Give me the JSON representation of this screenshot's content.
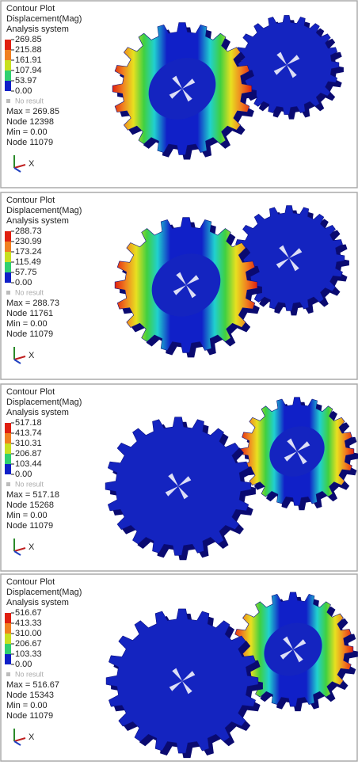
{
  "panels": [
    {
      "title": "Contour Plot",
      "subtitle": "Displacement(Mag)",
      "system": "Analysis system",
      "legend": [
        "269.85",
        "215.88",
        "161.91",
        "107.94",
        "53.97",
        "0.00"
      ],
      "no_result": "No result",
      "max": "Max = 269.85",
      "max_node": "Node 12398",
      "min": "Min = 0.00",
      "min_node": "Node 11079",
      "axis_x": "X"
    },
    {
      "title": "Contour Plot",
      "subtitle": "Displacement(Mag)",
      "system": "Analysis system",
      "legend": [
        "288.73",
        "230.99",
        "173.24",
        "115.49",
        "57.75",
        "0.00"
      ],
      "no_result": "No result",
      "max": "Max = 288.73",
      "max_node": "Node 11761",
      "min": "Min = 0.00",
      "min_node": "Node 11079",
      "axis_x": "X"
    },
    {
      "title": "Contour Plot",
      "subtitle": "Displacement(Mag)",
      "system": "Analysis system",
      "legend": [
        "517.18",
        "413.74",
        "310.31",
        "206.87",
        "103.44",
        "0.00"
      ],
      "no_result": "No result",
      "max": "Max = 517.18",
      "max_node": "Node 15268",
      "min": "Min = 0.00",
      "min_node": "Node 11079",
      "axis_x": "X"
    },
    {
      "title": "Contour Plot",
      "subtitle": "Displacement(Mag)",
      "system": "Analysis system",
      "legend": [
        "516.67",
        "413.33",
        "310.00",
        "206.67",
        "103.33",
        "0.00"
      ],
      "no_result": "No result",
      "max": "Max = 516.67",
      "max_node": "Node 15343",
      "min": "Min = 0.00",
      "min_node": "Node 11079",
      "axis_x": "X"
    }
  ]
}
